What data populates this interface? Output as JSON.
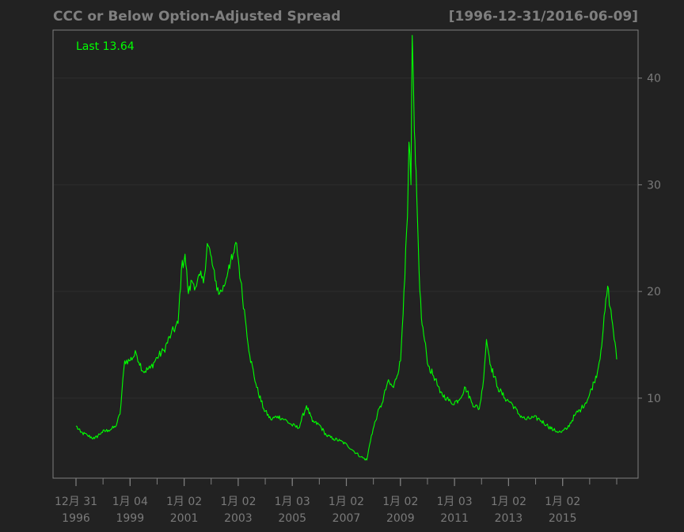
{
  "chart_data": {
    "type": "line",
    "title": "CCC or Below Option-Adjusted Spread",
    "date_range": "[1996-12-31/2016-06-09]",
    "last_label": "Last 13.64",
    "last_value": 13.64,
    "xlabel": "",
    "ylabel": "",
    "ylim": [
      2.5,
      44.5
    ],
    "xlim": [
      "1996-12-31",
      "2016-06-09"
    ],
    "y_ticks": [
      10,
      20,
      30,
      40
    ],
    "y_tick_labels": [
      "10",
      "20",
      "30",
      "40"
    ],
    "x_ticks": [
      {
        "line1": "12月 31",
        "line2": "1996"
      },
      {
        "line1": "1月 04",
        "line2": "1999"
      },
      {
        "line1": "1月 02",
        "line2": "2001"
      },
      {
        "line1": "1月 02",
        "line2": "2003"
      },
      {
        "line1": "1月 03",
        "line2": "2005"
      },
      {
        "line1": "1月 02",
        "line2": "2007"
      },
      {
        "line1": "1月 02",
        "line2": "2009"
      },
      {
        "line1": "1月 03",
        "line2": "2011"
      },
      {
        "line1": "1月 02",
        "line2": "2013"
      },
      {
        "line1": "1月 02",
        "line2": "2015"
      }
    ],
    "grid": true,
    "colors": {
      "background": "#222222",
      "line": "#00ff00",
      "text": "#7f7f7f",
      "grid": "#2e2e2e",
      "axis": "#7f7f7f"
    },
    "series": [
      {
        "x": [
          "1996-12-31",
          "1997-03-01",
          "1997-06-01",
          "1997-09-01",
          "1997-12-01",
          "1998-03-01",
          "1998-06-01",
          "1998-08-01",
          "1998-10-01",
          "1998-12-01",
          "1999-03-01",
          "1999-06-01",
          "1999-09-01",
          "1999-12-01",
          "2000-03-01",
          "2000-06-01",
          "2000-09-01",
          "2000-10-15",
          "2000-12-01",
          "2001-01-15",
          "2001-03-01",
          "2001-05-01",
          "2001-06-15",
          "2001-08-01",
          "2001-09-20",
          "2001-11-01",
          "2002-01-01",
          "2002-03-01",
          "2002-05-01",
          "2002-07-01",
          "2002-08-15",
          "2002-10-10",
          "2002-12-01",
          "2003-02-01",
          "2003-04-01",
          "2003-07-01",
          "2003-10-01",
          "2004-01-01",
          "2004-04-01",
          "2004-07-01",
          "2004-10-01",
          "2005-01-01",
          "2005-04-15",
          "2005-07-01",
          "2005-10-01",
          "2006-01-01",
          "2006-04-01",
          "2006-07-01",
          "2006-10-01",
          "2007-01-01",
          "2007-04-01",
          "2007-06-15",
          "2007-08-15",
          "2007-11-01",
          "2008-01-01",
          "2008-03-15",
          "2008-06-01",
          "2008-09-01",
          "2008-10-15",
          "2008-12-01",
          "2008-12-20",
          "2009-01-15",
          "2009-02-01",
          "2009-03-01",
          "2009-03-15",
          "2009-04-01",
          "2009-05-01",
          "2009-06-01",
          "2009-07-01",
          "2009-09-01",
          "2009-12-01",
          "2010-02-01",
          "2010-05-01",
          "2010-07-01",
          "2010-10-01",
          "2011-01-01",
          "2011-04-01",
          "2011-07-01",
          "2011-08-15",
          "2011-10-04",
          "2011-12-01",
          "2012-03-01",
          "2012-06-01",
          "2012-09-01",
          "2012-12-01",
          "2013-03-01",
          "2013-06-15",
          "2013-09-01",
          "2013-12-01",
          "2014-03-01",
          "2014-06-15",
          "2014-09-01",
          "2014-12-16",
          "2015-03-01",
          "2015-06-01",
          "2015-08-15",
          "2015-10-01",
          "2015-11-15",
          "2015-12-15",
          "2016-02-11",
          "2016-03-15",
          "2016-04-15",
          "2016-06-09"
        ],
        "values": [
          7.4,
          6.8,
          6.5,
          6.2,
          6.8,
          7.0,
          7.3,
          8.5,
          13.5,
          13.5,
          14.2,
          12.5,
          12.8,
          13.8,
          14.5,
          16.0,
          17.0,
          22.0,
          23.5,
          19.8,
          21.0,
          20.5,
          21.5,
          20.8,
          24.5,
          23.5,
          21.0,
          19.8,
          20.5,
          22.5,
          23.0,
          24.5,
          21.0,
          17.5,
          14.0,
          11.0,
          9.0,
          8.0,
          8.3,
          8.0,
          7.5,
          7.2,
          9.3,
          7.8,
          7.5,
          6.5,
          6.2,
          6.0,
          5.6,
          5.0,
          4.5,
          4.2,
          6.5,
          8.5,
          9.5,
          11.5,
          11.0,
          13.5,
          20.0,
          27.0,
          34.0,
          30.0,
          44.0,
          35.0,
          32.0,
          29.0,
          22.0,
          17.5,
          16.0,
          13.0,
          11.8,
          10.5,
          10.0,
          9.5,
          9.8,
          11.0,
          9.5,
          9.0,
          11.0,
          15.5,
          13.0,
          11.0,
          10.0,
          9.5,
          8.5,
          8.0,
          8.2,
          8.0,
          7.5,
          7.0,
          6.8,
          7.2,
          8.5,
          9.0,
          10.0,
          11.5,
          12.5,
          14.5,
          16.5,
          20.5,
          18.5,
          17.0,
          13.64
        ]
      }
    ]
  }
}
